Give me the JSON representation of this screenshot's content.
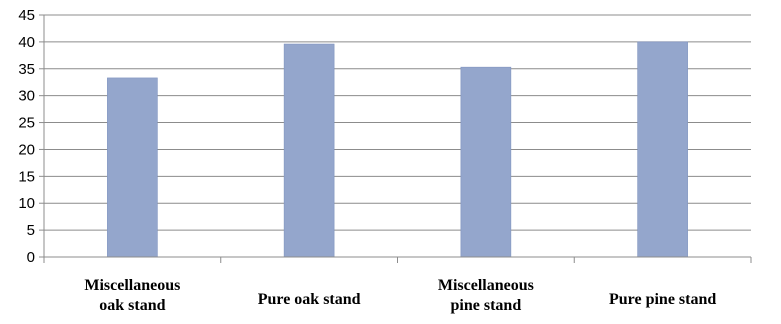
{
  "chart_data": {
    "type": "bar",
    "categories": [
      [
        "Miscellaneous",
        "oak stand"
      ],
      [
        "Pure oak stand"
      ],
      [
        "Miscellaneous",
        "pine stand"
      ],
      [
        "Pure pine stand"
      ]
    ],
    "values": [
      33.3,
      39.6,
      35.3,
      40.0
    ],
    "ylim": [
      0,
      45
    ],
    "yticks": [
      0,
      5,
      10,
      15,
      20,
      25,
      30,
      35,
      40,
      45
    ],
    "grid": true,
    "legend": "none",
    "colors": {
      "bar": "#94a6cc",
      "bar_edge": "#7f93bf",
      "grid": "#8c8c8c",
      "axis": "#8c8c8c"
    }
  }
}
